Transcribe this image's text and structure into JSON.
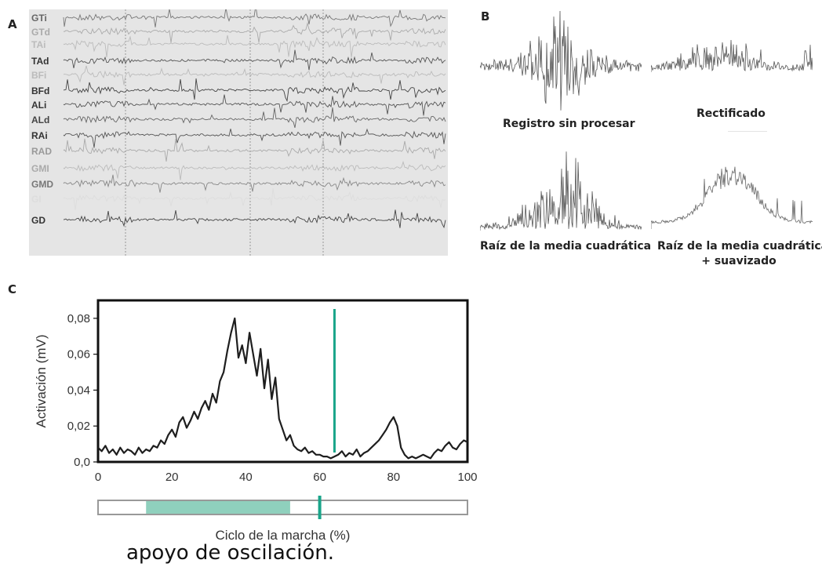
{
  "panels": {
    "a": {
      "letter": "A",
      "channels": [
        "GTi",
        "GTd",
        "TAi",
        "TAd",
        "BFi",
        "BFd",
        "ALi",
        "ALd",
        "RAi",
        "RAD",
        "GMI",
        "GMD",
        "GI",
        "GD"
      ]
    },
    "b": {
      "letter": "B",
      "labels": {
        "raw": "Registro sin procesar",
        "rectified": "Rectificado",
        "rms": "Raíz de la media cuadrática",
        "rms_smooth_line1": "Raíz de la media cuadrática",
        "rms_smooth_line2": "+ suavizado"
      }
    },
    "c": {
      "letter": "C"
    }
  },
  "chart_data": {
    "type": "line",
    "xlabel": "Ciclo de la marcha (%)",
    "ylabel": "Activación (mV)",
    "xlim": [
      0,
      100
    ],
    "ylim": [
      0,
      0.09
    ],
    "xticks": [
      0,
      20,
      40,
      60,
      80,
      100
    ],
    "xtick_labels": [
      "0",
      "20",
      "40",
      "60",
      "80",
      "100"
    ],
    "yticks": [
      0,
      0.02,
      0.04,
      0.06,
      0.08
    ],
    "ytick_labels": [
      "0,0",
      "0,02",
      "0,04",
      "0,06",
      "0,08"
    ],
    "x": [
      0,
      1,
      2,
      3,
      4,
      5,
      6,
      7,
      8,
      9,
      10,
      11,
      12,
      13,
      14,
      15,
      16,
      17,
      18,
      19,
      20,
      21,
      22,
      23,
      24,
      25,
      26,
      27,
      28,
      29,
      30,
      31,
      32,
      33,
      34,
      35,
      36,
      37,
      38,
      39,
      40,
      41,
      42,
      43,
      44,
      45,
      46,
      47,
      48,
      49,
      50,
      51,
      52,
      53,
      54,
      55,
      56,
      57,
      58,
      59,
      60,
      61,
      62,
      63,
      64,
      65,
      66,
      67,
      68,
      69,
      70,
      71,
      72,
      73,
      74,
      75,
      76,
      77,
      78,
      79,
      80,
      81,
      82,
      83,
      84,
      85,
      86,
      87,
      88,
      89,
      90,
      91,
      92,
      93,
      94,
      95,
      96,
      97,
      98,
      99,
      100
    ],
    "y": [
      0.008,
      0.006,
      0.009,
      0.005,
      0.007,
      0.004,
      0.008,
      0.005,
      0.007,
      0.006,
      0.004,
      0.008,
      0.005,
      0.007,
      0.006,
      0.009,
      0.008,
      0.012,
      0.01,
      0.015,
      0.018,
      0.014,
      0.022,
      0.025,
      0.019,
      0.023,
      0.028,
      0.024,
      0.03,
      0.034,
      0.029,
      0.038,
      0.033,
      0.045,
      0.05,
      0.062,
      0.072,
      0.08,
      0.058,
      0.065,
      0.055,
      0.072,
      0.06,
      0.048,
      0.063,
      0.041,
      0.057,
      0.035,
      0.047,
      0.024,
      0.018,
      0.012,
      0.015,
      0.009,
      0.007,
      0.006,
      0.008,
      0.005,
      0.006,
      0.004,
      0.004,
      0.003,
      0.003,
      0.002,
      0.003,
      0.004,
      0.006,
      0.003,
      0.005,
      0.004,
      0.007,
      0.003,
      0.005,
      0.006,
      0.008,
      0.01,
      0.012,
      0.015,
      0.018,
      0.022,
      0.025,
      0.02,
      0.008,
      0.004,
      0.002,
      0.003,
      0.002,
      0.003,
      0.004,
      0.003,
      0.002,
      0.005,
      0.007,
      0.006,
      0.009,
      0.011,
      0.008,
      0.007,
      0.01,
      0.012,
      0.011
    ],
    "marker_x": 64,
    "bar_x": 60,
    "stance_band": [
      13,
      52
    ],
    "line_color": "#1e1e1e",
    "accent_color": "#1aa58a",
    "band_color": "#8fd0bd",
    "grid": false
  },
  "caption": "apoyo de oscilación."
}
